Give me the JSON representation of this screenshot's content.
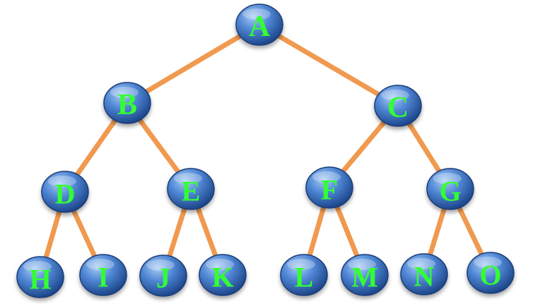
{
  "diagram": {
    "type": "binary-tree",
    "colors": {
      "node_fill_light": "#7fb0e8",
      "node_fill_dark": "#1d4f9a",
      "node_stroke": "#1a3e78",
      "edge": "#f0994f",
      "label": "#33ff33"
    },
    "nodes": [
      {
        "id": "A",
        "label": "A"
      },
      {
        "id": "B",
        "label": "B"
      },
      {
        "id": "C",
        "label": "C"
      },
      {
        "id": "D",
        "label": "D"
      },
      {
        "id": "E",
        "label": "E"
      },
      {
        "id": "F",
        "label": "F"
      },
      {
        "id": "G",
        "label": "G"
      },
      {
        "id": "H",
        "label": "H"
      },
      {
        "id": "I",
        "label": "I"
      },
      {
        "id": "J",
        "label": "J"
      },
      {
        "id": "K",
        "label": "K"
      },
      {
        "id": "L",
        "label": "L"
      },
      {
        "id": "M",
        "label": "M"
      },
      {
        "id": "N",
        "label": "N"
      },
      {
        "id": "O",
        "label": "O"
      }
    ],
    "edges": [
      [
        "A",
        "B"
      ],
      [
        "A",
        "C"
      ],
      [
        "B",
        "D"
      ],
      [
        "B",
        "E"
      ],
      [
        "C",
        "F"
      ],
      [
        "C",
        "G"
      ],
      [
        "D",
        "H"
      ],
      [
        "D",
        "I"
      ],
      [
        "E",
        "J"
      ],
      [
        "E",
        "K"
      ],
      [
        "F",
        "L"
      ],
      [
        "F",
        "M"
      ],
      [
        "G",
        "N"
      ],
      [
        "G",
        "O"
      ]
    ]
  }
}
